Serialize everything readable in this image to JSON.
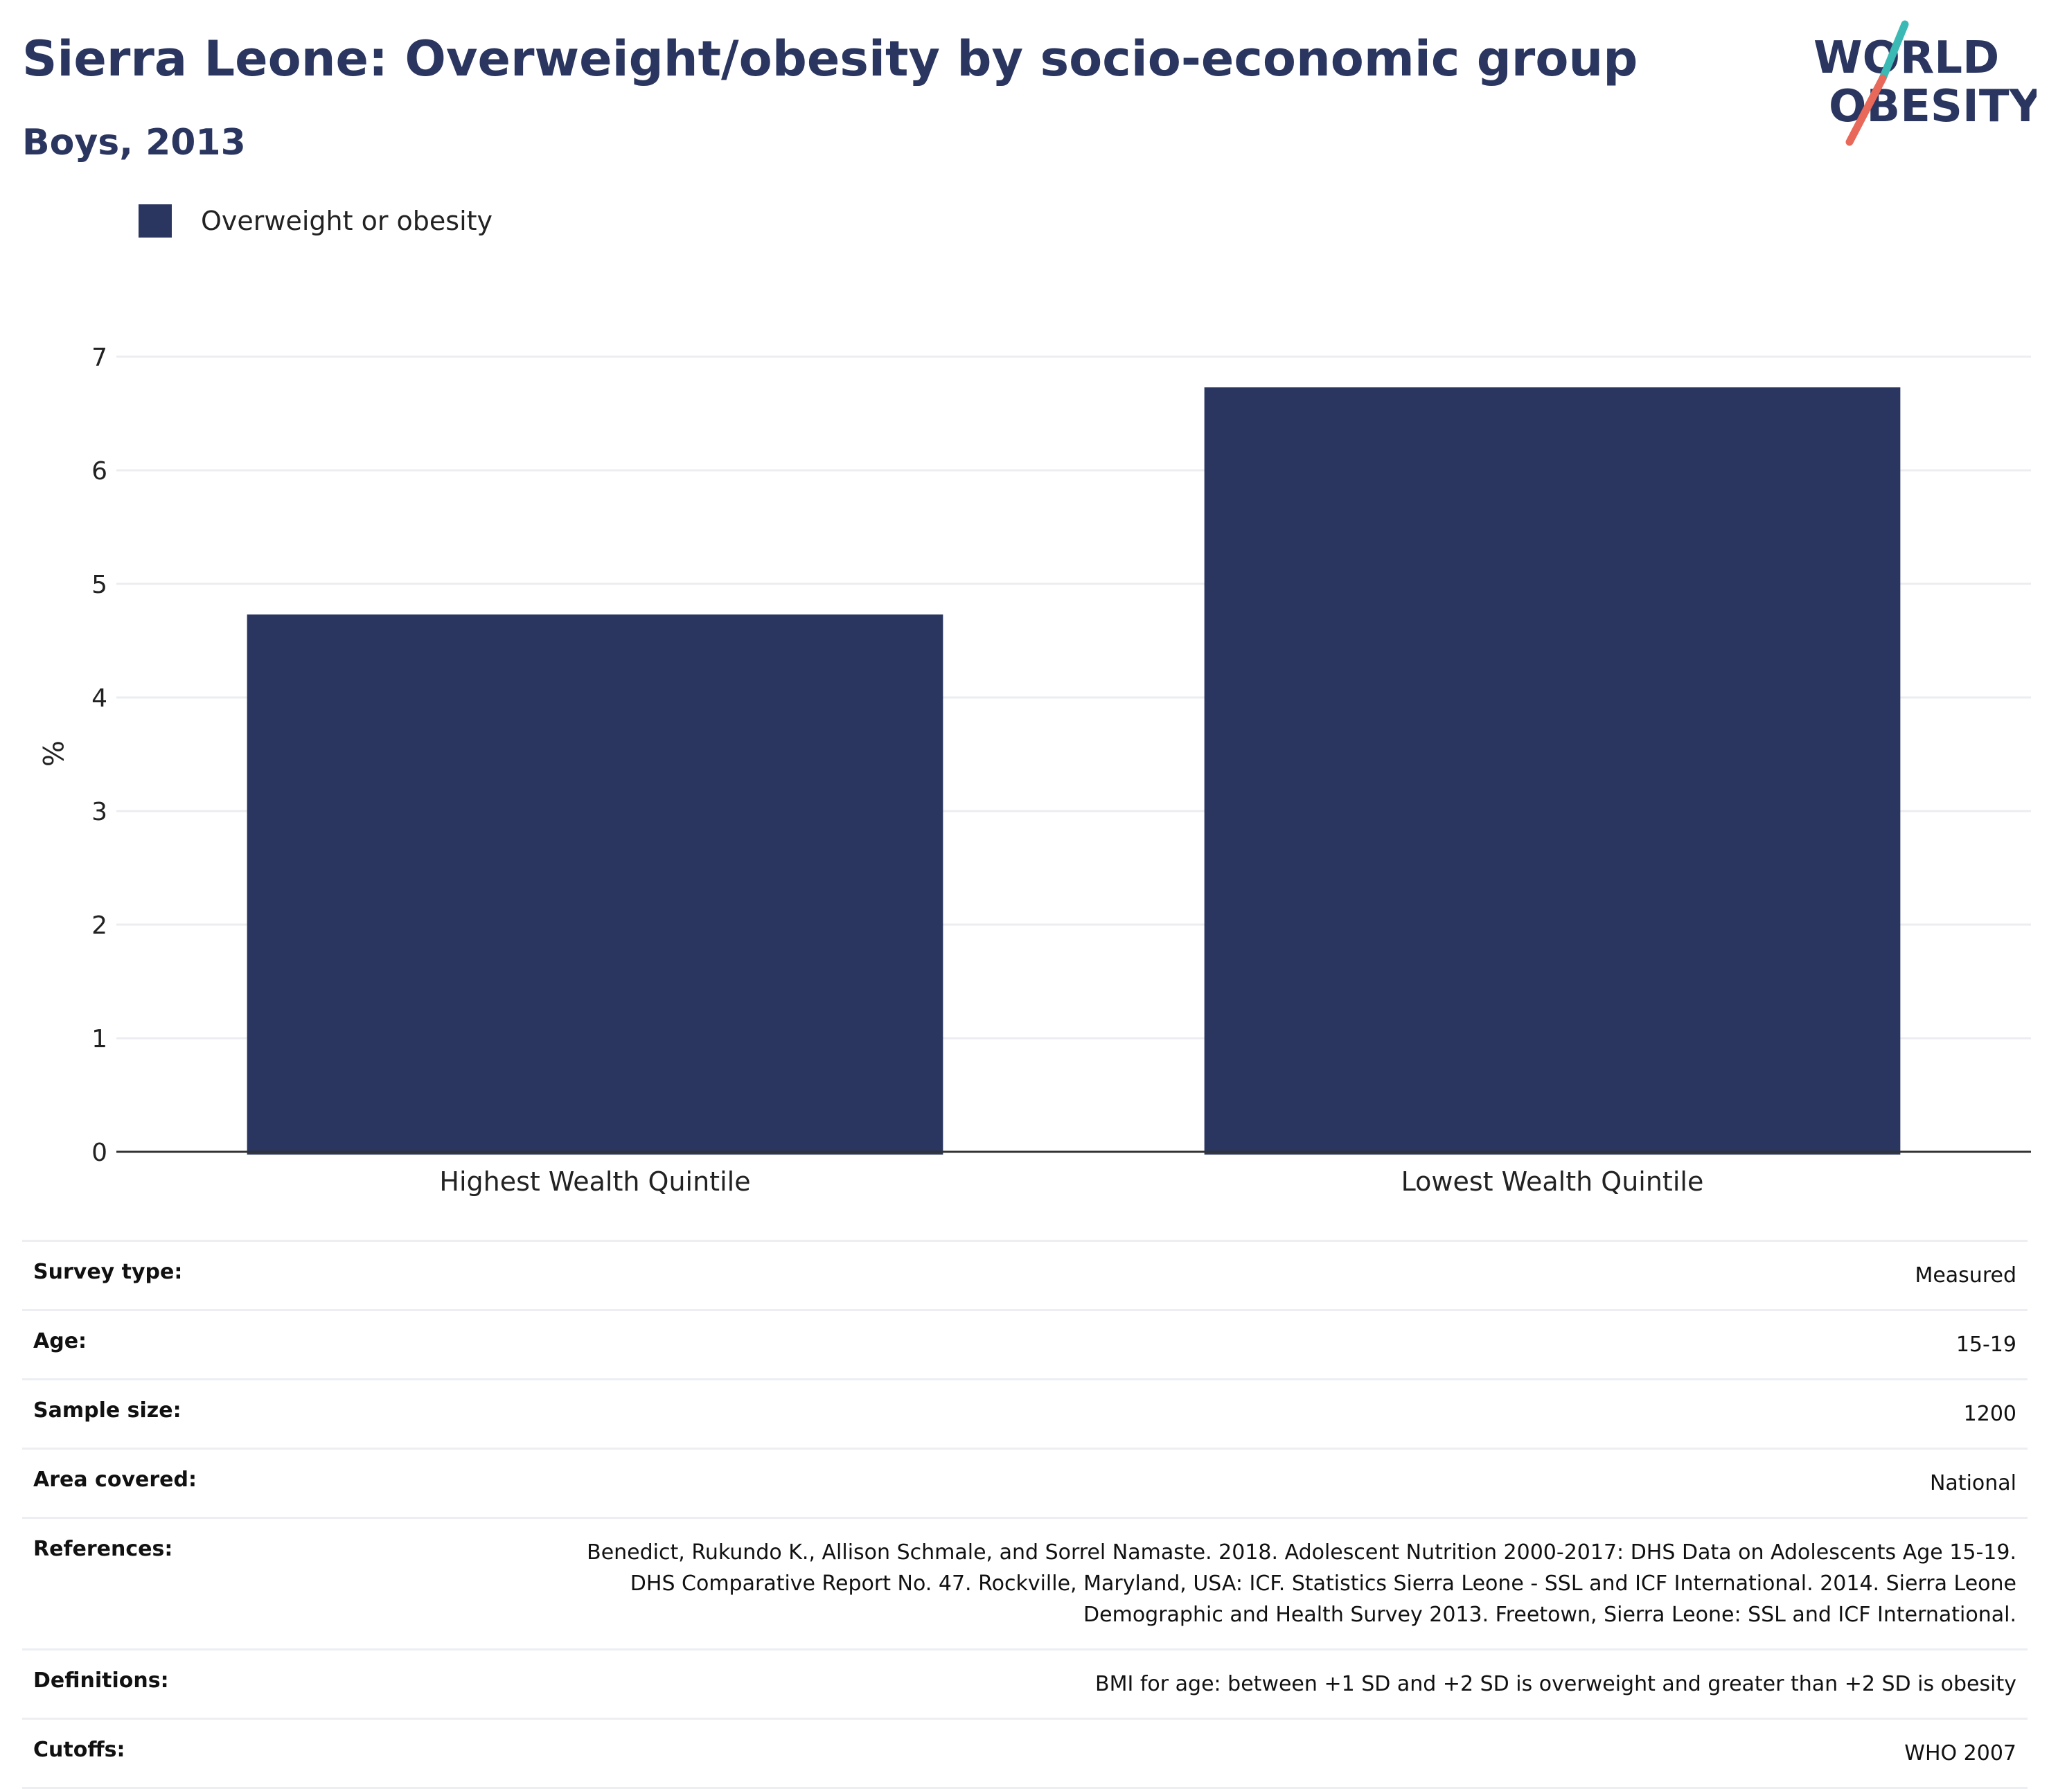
{
  "header": {
    "title": "Sierra Leone: Overweight/obesity by socio-economic group",
    "subtitle": "Boys, 2013"
  },
  "logo": {
    "line1": "WORLD",
    "line2": "OBESITY"
  },
  "colors": {
    "bar": "#2a365f",
    "text": "#2a365f",
    "logo_teal": "#3bb9b4",
    "logo_coral": "#e8685a"
  },
  "chart_data": {
    "type": "bar",
    "title": "Sierra Leone: Overweight/obesity by socio-economic group",
    "subtitle": "Boys, 2013",
    "categories": [
      "Highest Wealth Quintile",
      "Lowest Wealth Quintile"
    ],
    "series": [
      {
        "name": "Overweight or obesity",
        "values": [
          4.73,
          6.73
        ]
      }
    ],
    "xlabel": "",
    "ylabel": "%",
    "ylim": [
      0,
      7
    ],
    "yticks": [
      0,
      1,
      2,
      3,
      4,
      5,
      6,
      7
    ],
    "grid": true,
    "legend_position": "top-left"
  },
  "info": [
    {
      "label": "Survey type:",
      "value": "Measured"
    },
    {
      "label": "Age:",
      "value": "15-19"
    },
    {
      "label": "Sample size:",
      "value": "1200"
    },
    {
      "label": "Area covered:",
      "value": "National"
    },
    {
      "label": "References:",
      "value": "Benedict, Rukundo K., Allison Schmale, and Sorrel Namaste. 2018. Adolescent Nutrition 2000-2017: DHS Data on Adolescents Age 15-19. DHS Comparative Report No. 47. Rockville, Maryland, USA: ICF. Statistics Sierra Leone - SSL and ICF International. 2014. Sierra Leone Demographic and Health Survey 2013. Freetown, Sierra Leone: SSL and ICF International."
    },
    {
      "label": "Definitions:",
      "value": "BMI for age: between +1 SD and +2 SD is overweight and greater than +2 SD is obesity"
    },
    {
      "label": "Cutoffs:",
      "value": "WHO 2007"
    }
  ]
}
